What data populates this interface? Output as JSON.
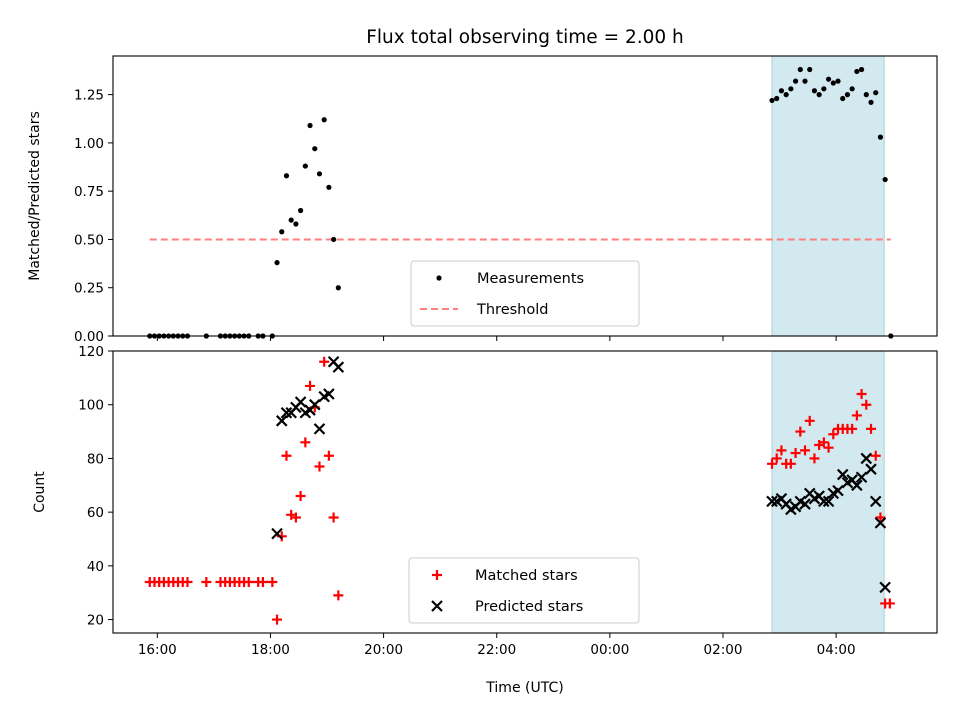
{
  "chart_data": {
    "title": "Flux total observing time = 2.00 h",
    "xlabel": "Time (UTC)",
    "x_unit": "hours (UTC)",
    "xlim": [
      "15:13",
      "05:47"
    ],
    "xticks": [
      "16:00",
      "18:00",
      "20:00",
      "22:00",
      "00:00",
      "02:00",
      "04:00"
    ],
    "shaded_interval": [
      "02:52",
      "04:51"
    ],
    "shade_color": "#d2e9ef",
    "panels": [
      {
        "type": "scatter",
        "ylabel": "Matched/Predicted stars",
        "ylim": [
          0,
          1.45
        ],
        "yticks": [
          "0.00",
          "0.25",
          "0.50",
          "0.75",
          "1.00",
          "1.25"
        ],
        "legend_position": "lower-center",
        "threshold": {
          "name": "Threshold",
          "y": 0.5,
          "x_range": [
            "15:52",
            "04:58"
          ],
          "color": "#ff7f7f"
        },
        "series": [
          {
            "name": "Measurements",
            "color": "#000000",
            "marker": "dot",
            "points": [
              [
                "15:52",
                0
              ],
              [
                "15:57",
                0
              ],
              [
                "16:02",
                0
              ],
              [
                "16:07",
                0
              ],
              [
                "16:12",
                0
              ],
              [
                "16:17",
                0
              ],
              [
                "16:22",
                0
              ],
              [
                "16:27",
                0
              ],
              [
                "16:32",
                0
              ],
              [
                "16:52",
                0
              ],
              [
                "17:07",
                0
              ],
              [
                "17:12",
                0
              ],
              [
                "17:17",
                0
              ],
              [
                "17:22",
                0
              ],
              [
                "17:27",
                0
              ],
              [
                "17:32",
                0
              ],
              [
                "17:37",
                0
              ],
              [
                "17:47",
                0
              ],
              [
                "17:52",
                0
              ],
              [
                "18:02",
                0
              ],
              [
                "18:07",
                0.38
              ],
              [
                "18:12",
                0.54
              ],
              [
                "18:17",
                0.83
              ],
              [
                "18:22",
                0.6
              ],
              [
                "18:27",
                0.58
              ],
              [
                "18:32",
                0.65
              ],
              [
                "18:37",
                0.88
              ],
              [
                "18:42",
                1.09
              ],
              [
                "18:47",
                0.97
              ],
              [
                "18:52",
                0.84
              ],
              [
                "18:57",
                1.12
              ],
              [
                "19:02",
                0.77
              ],
              [
                "19:07",
                0.5
              ],
              [
                "19:12",
                0.25
              ],
              [
                "02:52",
                1.22
              ],
              [
                "02:57",
                1.23
              ],
              [
                "03:02",
                1.27
              ],
              [
                "03:07",
                1.25
              ],
              [
                "03:12",
                1.28
              ],
              [
                "03:17",
                1.32
              ],
              [
                "03:22",
                1.38
              ],
              [
                "03:27",
                1.32
              ],
              [
                "03:32",
                1.38
              ],
              [
                "03:37",
                1.27
              ],
              [
                "03:42",
                1.25
              ],
              [
                "03:47",
                1.28
              ],
              [
                "03:52",
                1.33
              ],
              [
                "03:57",
                1.31
              ],
              [
                "04:02",
                1.32
              ],
              [
                "04:07",
                1.23
              ],
              [
                "04:12",
                1.25
              ],
              [
                "04:17",
                1.28
              ],
              [
                "04:22",
                1.37
              ],
              [
                "04:27",
                1.38
              ],
              [
                "04:32",
                1.25
              ],
              [
                "04:37",
                1.21
              ],
              [
                "04:42",
                1.26
              ],
              [
                "04:47",
                1.03
              ],
              [
                "04:52",
                0.81
              ],
              [
                "04:58",
                0
              ]
            ]
          }
        ]
      },
      {
        "type": "scatter",
        "ylabel": "Count",
        "ylim": [
          15,
          120
        ],
        "yticks": [
          "20",
          "40",
          "60",
          "80",
          "100",
          "120"
        ],
        "legend_position": "lower-center",
        "series": [
          {
            "name": "Matched stars",
            "color": "#ff0000",
            "marker": "plus",
            "points": [
              [
                "15:52",
                34
              ],
              [
                "15:57",
                34
              ],
              [
                "16:02",
                34
              ],
              [
                "16:07",
                34
              ],
              [
                "16:12",
                34
              ],
              [
                "16:17",
                34
              ],
              [
                "16:22",
                34
              ],
              [
                "16:27",
                34
              ],
              [
                "16:32",
                34
              ],
              [
                "16:52",
                34
              ],
              [
                "17:07",
                34
              ],
              [
                "17:12",
                34
              ],
              [
                "17:17",
                34
              ],
              [
                "17:22",
                34
              ],
              [
                "17:27",
                34
              ],
              [
                "17:32",
                34
              ],
              [
                "17:37",
                34
              ],
              [
                "17:47",
                34
              ],
              [
                "17:52",
                34
              ],
              [
                "18:02",
                34
              ],
              [
                "18:07",
                20
              ],
              [
                "18:12",
                51
              ],
              [
                "18:17",
                81
              ],
              [
                "18:22",
                59
              ],
              [
                "18:27",
                58
              ],
              [
                "18:32",
                66
              ],
              [
                "18:37",
                86
              ],
              [
                "18:42",
                107
              ],
              [
                "18:47",
                99
              ],
              [
                "18:52",
                77
              ],
              [
                "18:57",
                116
              ],
              [
                "19:02",
                81
              ],
              [
                "19:07",
                58
              ],
              [
                "19:12",
                29
              ],
              [
                "02:52",
                78
              ],
              [
                "02:57",
                80
              ],
              [
                "03:02",
                83
              ],
              [
                "03:07",
                78
              ],
              [
                "03:12",
                78
              ],
              [
                "03:17",
                82
              ],
              [
                "03:22",
                90
              ],
              [
                "03:27",
                83
              ],
              [
                "03:32",
                94
              ],
              [
                "03:37",
                80
              ],
              [
                "03:42",
                85
              ],
              [
                "03:47",
                86
              ],
              [
                "03:52",
                84
              ],
              [
                "03:57",
                89
              ],
              [
                "04:02",
                91
              ],
              [
                "04:07",
                91
              ],
              [
                "04:12",
                91
              ],
              [
                "04:17",
                91
              ],
              [
                "04:22",
                96
              ],
              [
                "04:27",
                104
              ],
              [
                "04:32",
                100
              ],
              [
                "04:37",
                91
              ],
              [
                "04:42",
                81
              ],
              [
                "04:47",
                58
              ],
              [
                "04:52",
                26
              ],
              [
                "04:57",
                26
              ]
            ]
          },
          {
            "name": "Predicted stars",
            "color": "#000000",
            "marker": "x",
            "points": [
              [
                "18:07",
                52
              ],
              [
                "18:12",
                94
              ],
              [
                "18:17",
                97
              ],
              [
                "18:22",
                97
              ],
              [
                "18:27",
                99
              ],
              [
                "18:32",
                101
              ],
              [
                "18:37",
                97
              ],
              [
                "18:42",
                98
              ],
              [
                "18:47",
                100
              ],
              [
                "18:52",
                91
              ],
              [
                "18:57",
                103
              ],
              [
                "19:02",
                104
              ],
              [
                "19:07",
                116
              ],
              [
                "19:12",
                114
              ],
              [
                "02:52",
                64
              ],
              [
                "02:57",
                64
              ],
              [
                "03:02",
                65
              ],
              [
                "03:07",
                63
              ],
              [
                "03:12",
                61
              ],
              [
                "03:17",
                62
              ],
              [
                "03:22",
                64
              ],
              [
                "03:27",
                63
              ],
              [
                "03:32",
                67
              ],
              [
                "03:37",
                65
              ],
              [
                "03:42",
                66
              ],
              [
                "03:47",
                64
              ],
              [
                "03:52",
                64
              ],
              [
                "03:57",
                67
              ],
              [
                "04:02",
                68
              ],
              [
                "04:07",
                74
              ],
              [
                "04:12",
                71
              ],
              [
                "04:17",
                72
              ],
              [
                "04:22",
                70
              ],
              [
                "04:27",
                73
              ],
              [
                "04:32",
                80
              ],
              [
                "04:37",
                76
              ],
              [
                "04:42",
                64
              ],
              [
                "04:47",
                56
              ],
              [
                "04:52",
                32
              ]
            ]
          }
        ]
      }
    ]
  }
}
